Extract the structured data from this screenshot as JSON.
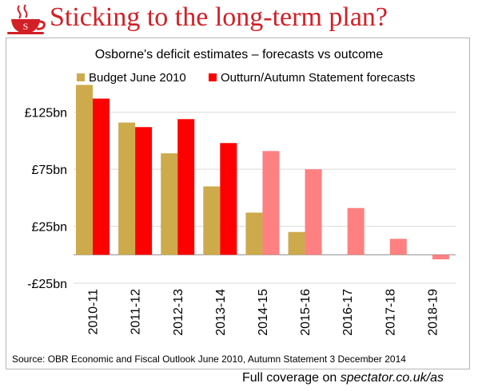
{
  "headline": "Sticking to the long-term plan?",
  "footer": {
    "prefix": "Full coverage on ",
    "site": "spectator.co.uk/as"
  },
  "logo": {
    "icon": "coffee-cup-s-icon",
    "letter": "S",
    "color": "#d31f26"
  },
  "source": "Source: OBR Economic and Fiscal Outlook June 2010, Autumn Statement 3 December 2014",
  "colors": {
    "budget": "#cdaa4b",
    "outturn": "#ff0000",
    "forecast": "#ff8080",
    "grid": "#d9d9d9"
  },
  "chart_data": {
    "type": "bar",
    "title": "Osborne's deficit estimates – forecasts vs outcome",
    "categories": [
      "2010-11",
      "2011-12",
      "2012-13",
      "2013-14",
      "2014-15",
      "2015-16",
      "2016-17",
      "2017-18",
      "2018-19"
    ],
    "series": [
      {
        "name": "Budget June 2010",
        "values": [
          149,
          116,
          89,
          60,
          37,
          20,
          null,
          null,
          null
        ]
      },
      {
        "name": "Outturn/Autumn Statement forecasts",
        "values": [
          137,
          112,
          119,
          98,
          91,
          75,
          41,
          14,
          -4
        ]
      }
    ],
    "outturn_through": "2013-14",
    "yticks": [
      "£125bn",
      "£75bn",
      "£25bn",
      "-£25bn"
    ],
    "ytick_values": [
      125,
      75,
      25,
      -25
    ],
    "ylim": [
      -25,
      150
    ],
    "grid": true,
    "legend_position": "top"
  }
}
